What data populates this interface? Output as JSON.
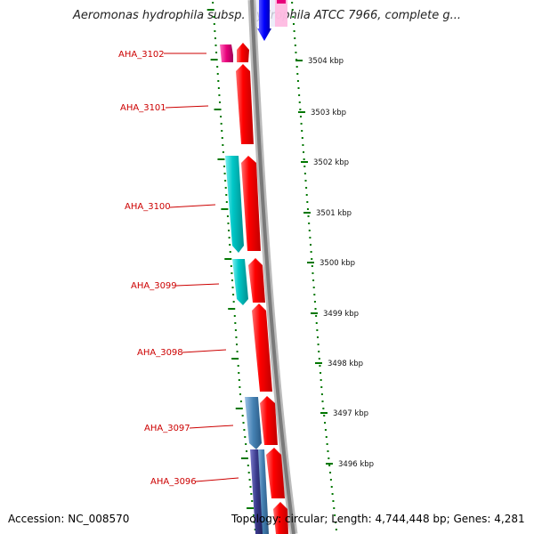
{
  "title": "Aeromonas hydrophila subsp. hydrophila ATCC 7966, complete g...",
  "genes": [
    {
      "name": "AHA_3102",
      "color": "#e8007a"
    },
    {
      "name": "AHA_3101",
      "color": "#ff0000"
    },
    {
      "name": "AHA_3100",
      "color": "#00c0c0"
    },
    {
      "name": "AHA_3099",
      "color": "#00c0c0"
    },
    {
      "name": "AHA_3098",
      "color": "#ff0000"
    },
    {
      "name": "AHA_3097",
      "color": "#4682b4"
    },
    {
      "name": "AHA_3096",
      "color": "#3a3a8c"
    }
  ],
  "ticks": [
    {
      "label": "3504 kbp"
    },
    {
      "label": "3503 kbp"
    },
    {
      "label": "3502 kbp"
    },
    {
      "label": "3501 kbp"
    },
    {
      "label": "3500 kbp"
    },
    {
      "label": "3499 kbp"
    },
    {
      "label": "3498 kbp"
    },
    {
      "label": "3497 kbp"
    },
    {
      "label": "3496 kbp"
    }
  ],
  "colors": {
    "forward_strand": "#ff0000",
    "reverse_strand": "#00c0c0",
    "pink": "#e8007a",
    "blue": "#0000ff",
    "steel": "#4682b4",
    "backbone": "#888888",
    "gc_skew": "#007700"
  },
  "footer": {
    "accession": "Accession: NC_008570",
    "topology": "Topology: circular; Length: 4,744,448 bp; Genes: 4,281"
  }
}
